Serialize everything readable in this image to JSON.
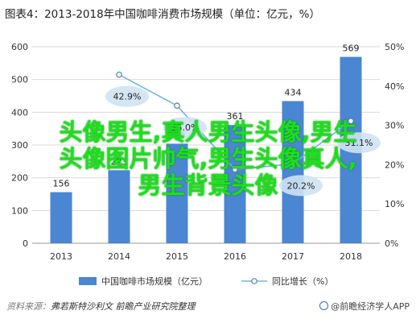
{
  "title": "图表4：2013-2018年中国咖啡消费市场规模（单位：亿元，%）",
  "chart_data": {
    "type": "bar",
    "categories": [
      "2013",
      "2014",
      "2015",
      "2016",
      "2017",
      "2018"
    ],
    "series": [
      {
        "name": "中国咖啡市场规模（亿元）",
        "type": "bar",
        "axis": "left",
        "color": "#4a86d2",
        "values": [
          156,
          223,
          304,
          361,
          434,
          569
        ],
        "labels": [
          "156",
          "223",
          "304",
          "361",
          "434",
          "569"
        ]
      },
      {
        "name": "同比增长（%）",
        "type": "line",
        "axis": "right",
        "color": "#6eb6e6",
        "values": [
          null,
          42.9,
          35.0,
          18.8,
          20.2,
          31.1
        ],
        "labels": [
          "",
          "42.9%",
          "35.0%",
          "",
          "20.2%",
          "31.1%"
        ]
      }
    ],
    "y_left": {
      "ticks": [
        "0",
        "100",
        "200",
        "300",
        "400",
        "500",
        "600"
      ],
      "ylim": [
        0,
        600
      ]
    },
    "y_right": {
      "ticks": [
        "0%",
        "10%",
        "20%",
        "30%",
        "40%",
        "50%"
      ],
      "ylim": [
        0,
        50
      ]
    },
    "legend_position": "bottom",
    "grid": true
  },
  "overlay_text": [
    "头像男生,真人男生头像,男生",
    "头像图片帅气,男生头像真人,",
    "男生背景头像"
  ],
  "source": {
    "label": "资料来源：",
    "text": "弗若斯特沙利文 前瞻产业研究院整理"
  },
  "logo": {
    "text": "@前瞻经济学人APP"
  }
}
